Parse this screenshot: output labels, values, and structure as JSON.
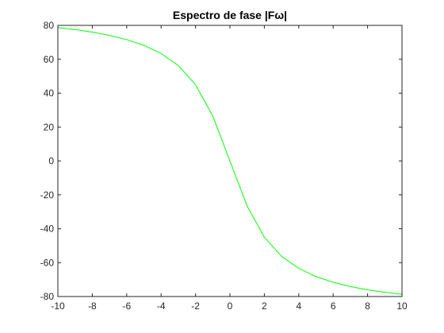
{
  "chart_data": {
    "type": "line",
    "title": "Espectro de fase |Fω|",
    "xlabel": "",
    "ylabel": "",
    "xlim": [
      -10,
      10
    ],
    "ylim": [
      -80,
      80
    ],
    "xticks": [
      -10,
      -8,
      -6,
      -4,
      -2,
      0,
      2,
      4,
      6,
      8,
      10
    ],
    "yticks": [
      -80,
      -60,
      -40,
      -20,
      0,
      20,
      40,
      60,
      80
    ],
    "grid": false,
    "legend": "none",
    "series": [
      {
        "color": "#00ff00",
        "x": [
          -10,
          -9,
          -8,
          -7,
          -6,
          -5,
          -4,
          -3,
          -2,
          -1,
          0,
          1,
          2,
          3,
          4,
          5,
          6,
          7,
          8,
          9,
          10
        ],
        "y": [
          78.7,
          77.5,
          76.0,
          74.1,
          71.6,
          68.2,
          63.4,
          56.3,
          45.0,
          26.6,
          0,
          -26.6,
          -45.0,
          -56.3,
          -63.4,
          -68.2,
          -71.6,
          -74.1,
          -76.0,
          -77.5,
          -78.7
        ]
      }
    ]
  }
}
